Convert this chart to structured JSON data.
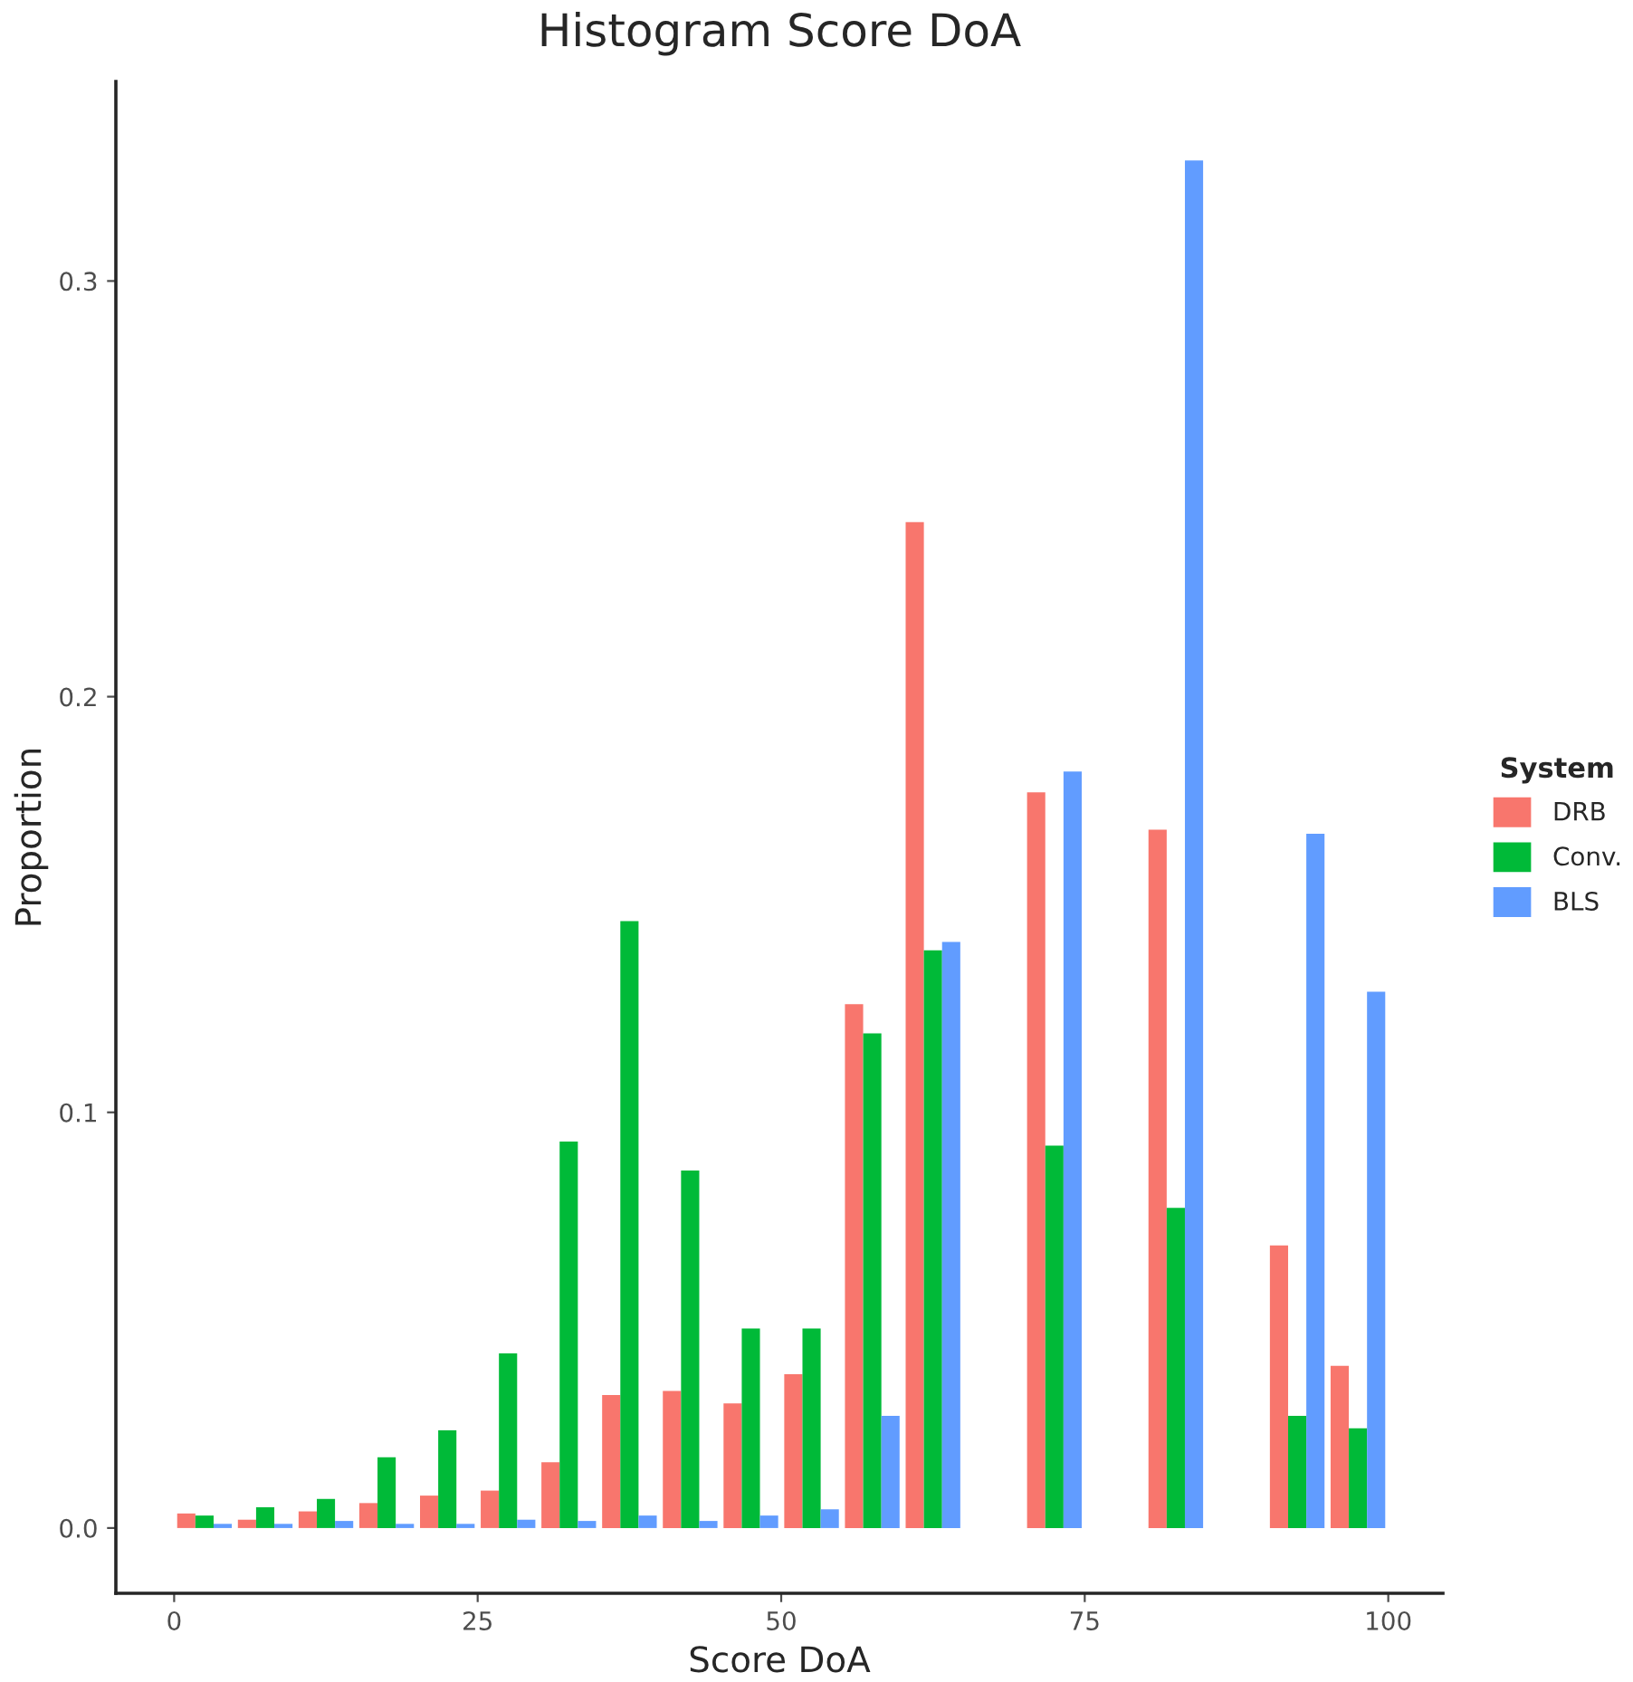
{
  "chart_data": {
    "type": "histogram",
    "title": "Histogram Score DoA",
    "xlabel": "Score DoA",
    "ylabel": "Proportion",
    "legend_title": "System",
    "bins": [
      0,
      5,
      10,
      15,
      20,
      25,
      30,
      35,
      40,
      45,
      50,
      55,
      60,
      65,
      70,
      75,
      80,
      85,
      90,
      95,
      100
    ],
    "series": [
      {
        "name": "DRB",
        "color": "#f8766d",
        "values": [
          0.0035,
          0.002,
          0.004,
          0.006,
          0.0078,
          0.009,
          0.0158,
          0.032,
          0.033,
          0.03,
          0.037,
          0.126,
          0.242,
          0,
          0.177,
          0,
          0.168,
          0,
          0.068,
          0.039
        ]
      },
      {
        "name": "Conv.",
        "color": "#00ba38",
        "values": [
          0.003,
          0.005,
          0.007,
          0.017,
          0.0235,
          0.042,
          0.093,
          0.146,
          0.086,
          0.048,
          0.048,
          0.119,
          0.139,
          0,
          0.092,
          0,
          0.077,
          0,
          0.027,
          0.024
        ]
      },
      {
        "name": "BLS",
        "color": "#619cff",
        "values": [
          0.001,
          0.001,
          0.0017,
          0.001,
          0.001,
          0.002,
          0.0017,
          0.003,
          0.0017,
          0.003,
          0.0045,
          0.027,
          0.141,
          0,
          0.182,
          0,
          0.329,
          0,
          0.167,
          0.129
        ]
      }
    ],
    "xlim": [
      -4.8,
      104.5
    ],
    "ylim": [
      -0.0157,
      0.348
    ],
    "xticks": [
      0,
      25,
      50,
      75,
      100
    ],
    "yticks": [
      {
        "value": 0,
        "label": "0.0"
      },
      {
        "value": 0.1,
        "label": "0.1"
      },
      {
        "value": 0.2,
        "label": "0.2"
      },
      {
        "value": 0.3,
        "label": "0.3"
      }
    ],
    "grid": false,
    "legend": "right"
  }
}
